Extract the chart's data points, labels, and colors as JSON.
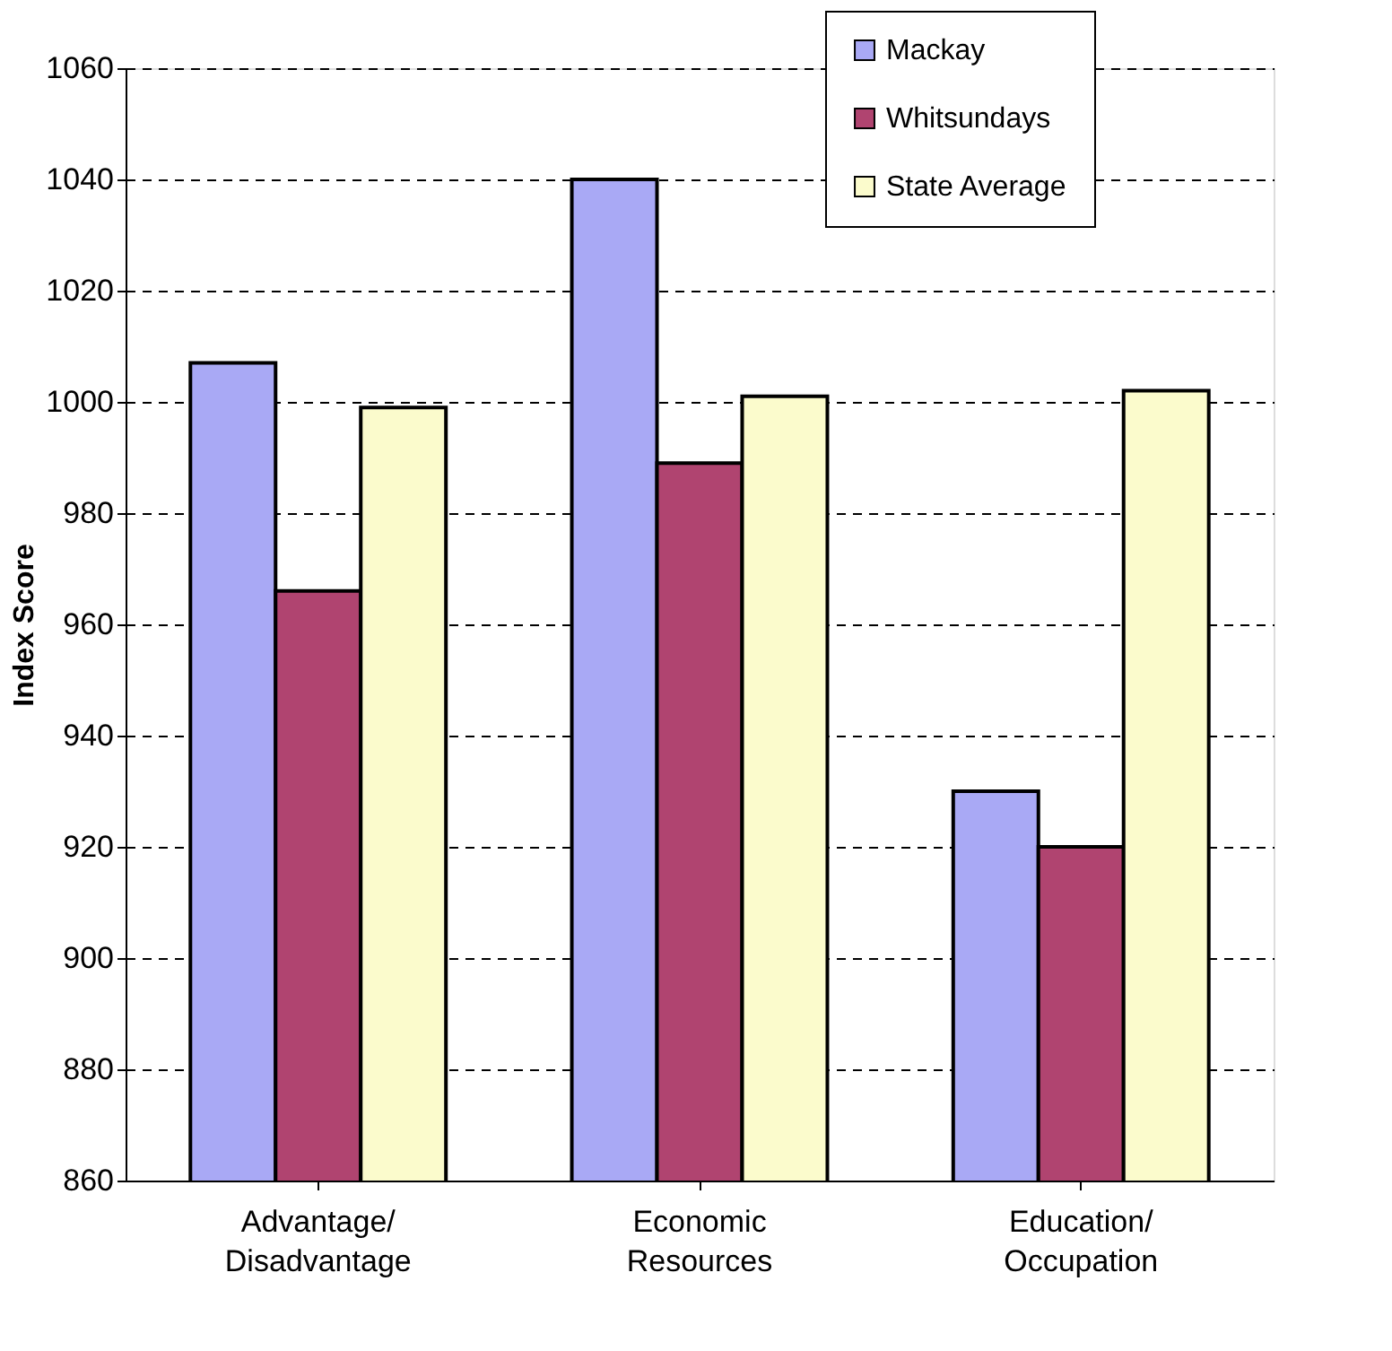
{
  "chart_data": {
    "type": "bar",
    "ylabel": "Index Score",
    "categories": [
      "Advantage/\nDisadvantage",
      "Economic\nResources",
      "Education/\nOccupation"
    ],
    "series": [
      {
        "name": "Mackay",
        "color": "#a9a9f5",
        "values": [
          1007,
          1040,
          930
        ]
      },
      {
        "name": "Whitsundays",
        "color": "#b04470",
        "values": [
          966,
          989,
          920
        ]
      },
      {
        "name": "State Average",
        "color": "#fbfbcc",
        "values": [
          999,
          1001,
          1002
        ]
      }
    ],
    "ylim": [
      860,
      1060
    ],
    "yticks": [
      860,
      880,
      900,
      920,
      940,
      960,
      980,
      1000,
      1020,
      1040,
      1060
    ],
    "grid": "y",
    "legend": "top right"
  }
}
